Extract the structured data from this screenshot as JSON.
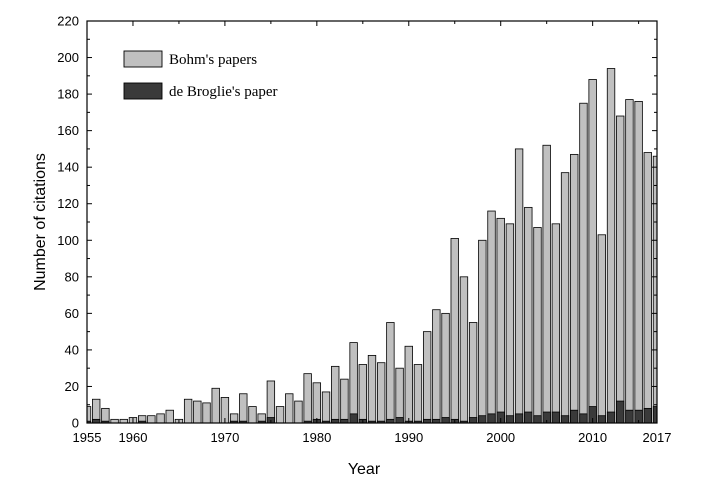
{
  "chart_data": {
    "type": "bar",
    "xlabel": "Year",
    "ylabel": "Number of citations",
    "xlim": [
      1955,
      2017
    ],
    "ylim": [
      0,
      220
    ],
    "xticks": [
      1955,
      1960,
      1970,
      1980,
      1990,
      2000,
      2010,
      2017
    ],
    "yticks": [
      0,
      20,
      40,
      60,
      80,
      100,
      120,
      140,
      160,
      180,
      200,
      220
    ],
    "legend_position": "top-left",
    "grid": false,
    "x": [
      1955,
      1956,
      1957,
      1958,
      1959,
      1960,
      1961,
      1962,
      1963,
      1964,
      1965,
      1966,
      1967,
      1968,
      1969,
      1970,
      1971,
      1972,
      1973,
      1974,
      1975,
      1976,
      1977,
      1978,
      1979,
      1980,
      1981,
      1982,
      1983,
      1984,
      1985,
      1986,
      1987,
      1988,
      1989,
      1990,
      1991,
      1992,
      1993,
      1994,
      1995,
      1996,
      1997,
      1998,
      1999,
      2000,
      2001,
      2002,
      2003,
      2004,
      2005,
      2006,
      2007,
      2008,
      2009,
      2010,
      2011,
      2012,
      2013,
      2014,
      2015,
      2016,
      2017
    ],
    "series": [
      {
        "name": "Bohm's papers",
        "color": "#c0c0c0",
        "values": [
          9,
          13,
          8,
          2,
          2,
          3,
          4,
          4,
          5,
          7,
          2,
          13,
          12,
          11,
          19,
          14,
          5,
          16,
          9,
          5,
          23,
          9,
          16,
          12,
          27,
          22,
          17,
          31,
          24,
          44,
          32,
          37,
          33,
          55,
          30,
          42,
          32,
          50,
          62,
          60,
          101,
          80,
          55,
          100,
          116,
          112,
          109,
          150,
          118,
          107,
          152,
          109,
          137,
          147,
          175,
          188,
          103,
          194,
          168,
          177,
          176,
          148,
          146
        ]
      },
      {
        "name": "de Broglie's paper",
        "color": "#3a3a3a",
        "values": [
          1,
          2,
          1,
          0,
          0,
          0,
          1,
          0,
          0,
          0,
          0,
          0,
          0,
          0,
          0,
          0,
          1,
          1,
          0,
          1,
          3,
          0,
          0,
          0,
          1,
          2,
          1,
          2,
          2,
          5,
          2,
          1,
          1,
          2,
          3,
          1,
          1,
          2,
          2,
          3,
          2,
          1,
          3,
          4,
          5,
          6,
          4,
          5,
          6,
          4,
          6,
          6,
          4,
          7,
          5,
          9,
          4,
          6,
          12,
          7,
          7,
          8,
          9
        ]
      }
    ]
  }
}
